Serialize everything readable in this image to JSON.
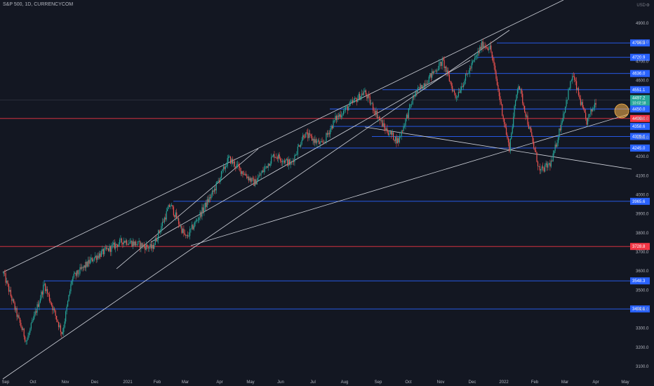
{
  "header": {
    "symbol": "S&P 500, 1D, CURRENCYCOM",
    "currency": "USD"
  },
  "colors": {
    "up": "#26a69a",
    "down": "#ef5350",
    "bg": "#131722",
    "blue": "#2962ff",
    "red": "#f23645"
  },
  "chart_data": {
    "type": "candlestick",
    "title": "S&P 500, 1D, CURRENCYCOM",
    "ylabel": "USD",
    "ylim": [
      3050,
      5050
    ],
    "y_ticks": [
      3100,
      3200,
      3300,
      3400,
      3500,
      3600,
      3700,
      3800,
      3900,
      4000,
      4100,
      4200,
      4300,
      4400,
      4500,
      4600,
      4700,
      4800,
      4900
    ],
    "x_ticks": [
      "Sep",
      "Oct",
      "Nov",
      "Dec",
      "2021",
      "Feb",
      "Mar",
      "Apr",
      "May",
      "Jun",
      "Jul",
      "Aug",
      "Sep",
      "Oct",
      "Nov",
      "Dec",
      "2022",
      "Feb",
      "Mar",
      "Apr",
      "May"
    ],
    "grid": false,
    "current_price": {
      "value": "4497.2",
      "countdown": "10:02:18"
    },
    "horizontal_levels": [
      {
        "value": 4796.3,
        "label": "4796.3",
        "color": "blue"
      },
      {
        "value": 4720.9,
        "label": "4720.9",
        "color": "blue"
      },
      {
        "value": 4636.0,
        "label": "4636.0",
        "color": "blue"
      },
      {
        "value": 4551.1,
        "label": "4551.1",
        "color": "blue"
      },
      {
        "value": 4450.0,
        "label": "4450.0",
        "color": "blue"
      },
      {
        "value": 4400.0,
        "label": "4400.0",
        "color": "red"
      },
      {
        "value": 4358.6,
        "label": "4358.6",
        "color": "blue"
      },
      {
        "value": 4305.6,
        "label": "4305.6",
        "color": "blue"
      },
      {
        "value": 4245.0,
        "label": "4245.0",
        "color": "blue"
      },
      {
        "value": 3965.6,
        "label": "3965.6",
        "color": "blue"
      },
      {
        "value": 3728.8,
        "label": "3728.8",
        "color": "red"
      },
      {
        "value": 3548.3,
        "label": "3548.3",
        "color": "blue"
      },
      {
        "value": 3401.1,
        "label": "3401.1",
        "color": "blue"
      }
    ],
    "series_path": [
      [
        "2020-09-01",
        3585
      ],
      [
        "2020-09-15",
        3360
      ],
      [
        "2020-09-24",
        3230
      ],
      [
        "2020-10-12",
        3530
      ],
      [
        "2020-10-30",
        3270
      ],
      [
        "2020-11-09",
        3560
      ],
      [
        "2020-12-01",
        3670
      ],
      [
        "2020-12-31",
        3760
      ],
      [
        "2021-01-29",
        3720
      ],
      [
        "2021-02-16",
        3950
      ],
      [
        "2021-03-04",
        3770
      ],
      [
        "2021-04-01",
        4020
      ],
      [
        "2021-04-16",
        4190
      ],
      [
        "2021-05-12",
        4060
      ],
      [
        "2021-06-01",
        4210
      ],
      [
        "2021-06-18",
        4160
      ],
      [
        "2021-07-01",
        4320
      ],
      [
        "2021-07-19",
        4260
      ],
      [
        "2021-08-02",
        4400
      ],
      [
        "2021-08-31",
        4540
      ],
      [
        "2021-09-20",
        4350
      ],
      [
        "2021-10-04",
        4280
      ],
      [
        "2021-10-20",
        4520
      ],
      [
        "2021-11-18",
        4700
      ],
      [
        "2021-12-01",
        4510
      ],
      [
        "2021-12-28",
        4790
      ],
      [
        "2022-01-05",
        4770
      ],
      [
        "2022-01-24",
        4240
      ],
      [
        "2022-02-02",
        4590
      ],
      [
        "2022-02-24",
        4120
      ],
      [
        "2022-03-08",
        4170
      ],
      [
        "2022-03-29",
        4630
      ],
      [
        "2022-04-12",
        4380
      ],
      [
        "2022-04-22",
        4497
      ]
    ]
  }
}
